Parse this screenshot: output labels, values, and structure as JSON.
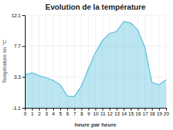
{
  "chart_data": {
    "type": "area",
    "title": "Evolution de la température",
    "xlabel": "heure par heure",
    "ylabel": "Température en °C",
    "x": [
      0,
      1,
      2,
      3,
      4,
      5,
      6,
      7,
      8,
      9,
      10,
      11,
      12,
      13,
      14,
      15,
      16,
      17,
      18,
      19,
      20
    ],
    "values": [
      3.6,
      3.9,
      3.5,
      3.2,
      2.8,
      2.2,
      0.6,
      0.5,
      2.0,
      4.5,
      6.8,
      8.5,
      9.5,
      9.8,
      11.2,
      11.0,
      10.0,
      7.5,
      2.5,
      2.2,
      2.9
    ],
    "color": "#68c5df",
    "xlim": [
      0,
      20
    ],
    "xticks": [
      0,
      1,
      2,
      3,
      4,
      5,
      6,
      7,
      8,
      9,
      10,
      11,
      12,
      13,
      14,
      15,
      16,
      17,
      18,
      19,
      20
    ],
    "ylim": [
      -1.1,
      12.1
    ],
    "yticks": [
      -1.1,
      3.3,
      7.7,
      12.1
    ],
    "grid": true
  }
}
